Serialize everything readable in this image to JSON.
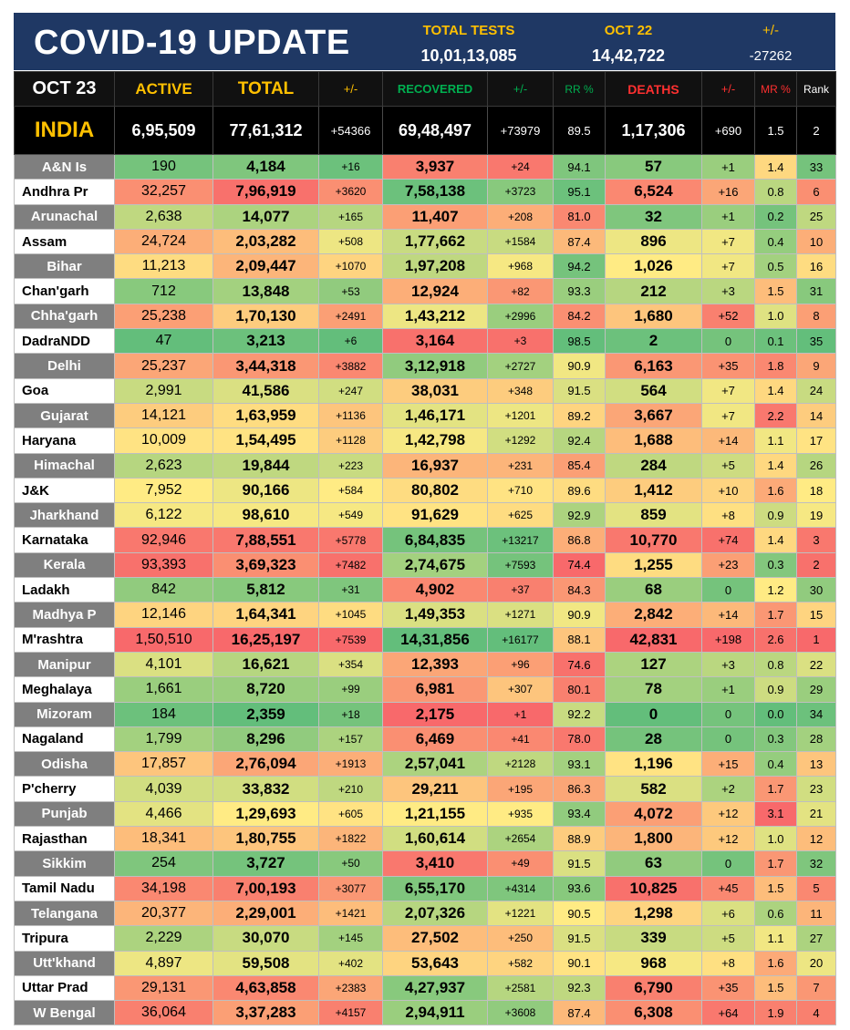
{
  "header": {
    "title": "COVID-19 UPDATE",
    "total_tests_label": "TOTAL TESTS",
    "total_tests_value": "10,01,13,085",
    "prev_date_label": "OCT 22",
    "prev_tests_value": "14,42,722",
    "diff_label": "+/-",
    "diff_value": "-27262"
  },
  "columns": {
    "date": "OCT 23",
    "active": "ACTIVE",
    "total": "TOTAL",
    "total_change": "+/-",
    "recovered": "RECOVERED",
    "recovered_change": "+/-",
    "rr": "RR %",
    "deaths": "DEATHS",
    "deaths_change": "+/-",
    "mr": "MR %",
    "rank": "Rank"
  },
  "colors": {
    "banner_bg": "#1f3864",
    "header_gold": "#ffc000",
    "header_green": "#00b050",
    "header_red": "#ff3030",
    "scale_green": "#63be7b",
    "scale_yellow": "#ffeb84",
    "scale_red": "#f8696b"
  },
  "chart_data": {
    "type": "table",
    "title": "COVID-19 UPDATE",
    "national": {
      "name": "INDIA",
      "active": "6,95,509",
      "total": "77,61,312",
      "total_change": "+54366",
      "recovered": "69,48,497",
      "recovered_change": "+73979",
      "rr": "89.5",
      "deaths": "1,17,306",
      "deaths_change": "+690",
      "mr": "1.5",
      "rank": "2"
    },
    "rows": [
      {
        "name": "A&N Is",
        "active": "190",
        "total": "4,184",
        "total_change": "+16",
        "recovered": "3,937",
        "recovered_change": "+24",
        "rr": "94.1",
        "deaths": "57",
        "deaths_change": "+1",
        "mr": "1.4",
        "rank": "33"
      },
      {
        "name": "Andhra Pr",
        "active": "32,257",
        "total": "7,96,919",
        "total_change": "+3620",
        "recovered": "7,58,138",
        "recovered_change": "+3723",
        "rr": "95.1",
        "deaths": "6,524",
        "deaths_change": "+16",
        "mr": "0.8",
        "rank": "6"
      },
      {
        "name": "Arunachal",
        "active": "2,638",
        "total": "14,077",
        "total_change": "+165",
        "recovered": "11,407",
        "recovered_change": "+208",
        "rr": "81.0",
        "deaths": "32",
        "deaths_change": "+1",
        "mr": "0.2",
        "rank": "25"
      },
      {
        "name": "Assam",
        "active": "24,724",
        "total": "2,03,282",
        "total_change": "+508",
        "recovered": "1,77,662",
        "recovered_change": "+1584",
        "rr": "87.4",
        "deaths": "896",
        "deaths_change": "+7",
        "mr": "0.4",
        "rank": "10"
      },
      {
        "name": "Bihar",
        "active": "11,213",
        "total": "2,09,447",
        "total_change": "+1070",
        "recovered": "1,97,208",
        "recovered_change": "+968",
        "rr": "94.2",
        "deaths": "1,026",
        "deaths_change": "+7",
        "mr": "0.5",
        "rank": "16"
      },
      {
        "name": "Chan'garh",
        "active": "712",
        "total": "13,848",
        "total_change": "+53",
        "recovered": "12,924",
        "recovered_change": "+82",
        "rr": "93.3",
        "deaths": "212",
        "deaths_change": "+3",
        "mr": "1.5",
        "rank": "31"
      },
      {
        "name": "Chha'garh",
        "active": "25,238",
        "total": "1,70,130",
        "total_change": "+2491",
        "recovered": "1,43,212",
        "recovered_change": "+2996",
        "rr": "84.2",
        "deaths": "1,680",
        "deaths_change": "+52",
        "mr": "1.0",
        "rank": "8"
      },
      {
        "name": "DadraNDD",
        "active": "47",
        "total": "3,213",
        "total_change": "+6",
        "recovered": "3,164",
        "recovered_change": "+3",
        "rr": "98.5",
        "deaths": "2",
        "deaths_change": "0",
        "mr": "0.1",
        "rank": "35"
      },
      {
        "name": "Delhi",
        "active": "25,237",
        "total": "3,44,318",
        "total_change": "+3882",
        "recovered": "3,12,918",
        "recovered_change": "+2727",
        "rr": "90.9",
        "deaths": "6,163",
        "deaths_change": "+35",
        "mr": "1.8",
        "rank": "9"
      },
      {
        "name": "Goa",
        "active": "2,991",
        "total": "41,586",
        "total_change": "+247",
        "recovered": "38,031",
        "recovered_change": "+348",
        "rr": "91.5",
        "deaths": "564",
        "deaths_change": "+7",
        "mr": "1.4",
        "rank": "24"
      },
      {
        "name": "Gujarat",
        "active": "14,121",
        "total": "1,63,959",
        "total_change": "+1136",
        "recovered": "1,46,171",
        "recovered_change": "+1201",
        "rr": "89.2",
        "deaths": "3,667",
        "deaths_change": "+7",
        "mr": "2.2",
        "rank": "14"
      },
      {
        "name": "Haryana",
        "active": "10,009",
        "total": "1,54,495",
        "total_change": "+1128",
        "recovered": "1,42,798",
        "recovered_change": "+1292",
        "rr": "92.4",
        "deaths": "1,688",
        "deaths_change": "+14",
        "mr": "1.1",
        "rank": "17"
      },
      {
        "name": "Himachal",
        "active": "2,623",
        "total": "19,844",
        "total_change": "+223",
        "recovered": "16,937",
        "recovered_change": "+231",
        "rr": "85.4",
        "deaths": "284",
        "deaths_change": "+5",
        "mr": "1.4",
        "rank": "26"
      },
      {
        "name": "J&K",
        "active": "7,952",
        "total": "90,166",
        "total_change": "+584",
        "recovered": "80,802",
        "recovered_change": "+710",
        "rr": "89.6",
        "deaths": "1,412",
        "deaths_change": "+10",
        "mr": "1.6",
        "rank": "18"
      },
      {
        "name": "Jharkhand",
        "active": "6,122",
        "total": "98,610",
        "total_change": "+549",
        "recovered": "91,629",
        "recovered_change": "+625",
        "rr": "92.9",
        "deaths": "859",
        "deaths_change": "+8",
        "mr": "0.9",
        "rank": "19"
      },
      {
        "name": "Karnataka",
        "active": "92,946",
        "total": "7,88,551",
        "total_change": "+5778",
        "recovered": "6,84,835",
        "recovered_change": "+13217",
        "rr": "86.8",
        "deaths": "10,770",
        "deaths_change": "+74",
        "mr": "1.4",
        "rank": "3"
      },
      {
        "name": "Kerala",
        "active": "93,393",
        "total": "3,69,323",
        "total_change": "+7482",
        "recovered": "2,74,675",
        "recovered_change": "+7593",
        "rr": "74.4",
        "deaths": "1,255",
        "deaths_change": "+23",
        "mr": "0.3",
        "rank": "2"
      },
      {
        "name": "Ladakh",
        "active": "842",
        "total": "5,812",
        "total_change": "+31",
        "recovered": "4,902",
        "recovered_change": "+37",
        "rr": "84.3",
        "deaths": "68",
        "deaths_change": "0",
        "mr": "1.2",
        "rank": "30"
      },
      {
        "name": "Madhya P",
        "active": "12,146",
        "total": "1,64,341",
        "total_change": "+1045",
        "recovered": "1,49,353",
        "recovered_change": "+1271",
        "rr": "90.9",
        "deaths": "2,842",
        "deaths_change": "+14",
        "mr": "1.7",
        "rank": "15"
      },
      {
        "name": "M'rashtra",
        "active": "1,50,510",
        "total": "16,25,197",
        "total_change": "+7539",
        "recovered": "14,31,856",
        "recovered_change": "+16177",
        "rr": "88.1",
        "deaths": "42,831",
        "deaths_change": "+198",
        "mr": "2.6",
        "rank": "1"
      },
      {
        "name": "Manipur",
        "active": "4,101",
        "total": "16,621",
        "total_change": "+354",
        "recovered": "12,393",
        "recovered_change": "+96",
        "rr": "74.6",
        "deaths": "127",
        "deaths_change": "+3",
        "mr": "0.8",
        "rank": "22"
      },
      {
        "name": "Meghalaya",
        "active": "1,661",
        "total": "8,720",
        "total_change": "+99",
        "recovered": "6,981",
        "recovered_change": "+307",
        "rr": "80.1",
        "deaths": "78",
        "deaths_change": "+1",
        "mr": "0.9",
        "rank": "29"
      },
      {
        "name": "Mizoram",
        "active": "184",
        "total": "2,359",
        "total_change": "+18",
        "recovered": "2,175",
        "recovered_change": "+1",
        "rr": "92.2",
        "deaths": "0",
        "deaths_change": "0",
        "mr": "0.0",
        "rank": "34"
      },
      {
        "name": "Nagaland",
        "active": "1,799",
        "total": "8,296",
        "total_change": "+157",
        "recovered": "6,469",
        "recovered_change": "+41",
        "rr": "78.0",
        "deaths": "28",
        "deaths_change": "0",
        "mr": "0.3",
        "rank": "28"
      },
      {
        "name": "Odisha",
        "active": "17,857",
        "total": "2,76,094",
        "total_change": "+1913",
        "recovered": "2,57,041",
        "recovered_change": "+2128",
        "rr": "93.1",
        "deaths": "1,196",
        "deaths_change": "+15",
        "mr": "0.4",
        "rank": "13"
      },
      {
        "name": "P'cherry",
        "active": "4,039",
        "total": "33,832",
        "total_change": "+210",
        "recovered": "29,211",
        "recovered_change": "+195",
        "rr": "86.3",
        "deaths": "582",
        "deaths_change": "+2",
        "mr": "1.7",
        "rank": "23"
      },
      {
        "name": "Punjab",
        "active": "4,466",
        "total": "1,29,693",
        "total_change": "+605",
        "recovered": "1,21,155",
        "recovered_change": "+935",
        "rr": "93.4",
        "deaths": "4,072",
        "deaths_change": "+12",
        "mr": "3.1",
        "rank": "21"
      },
      {
        "name": "Rajasthan",
        "active": "18,341",
        "total": "1,80,755",
        "total_change": "+1822",
        "recovered": "1,60,614",
        "recovered_change": "+2654",
        "rr": "88.9",
        "deaths": "1,800",
        "deaths_change": "+12",
        "mr": "1.0",
        "rank": "12"
      },
      {
        "name": "Sikkim",
        "active": "254",
        "total": "3,727",
        "total_change": "+50",
        "recovered": "3,410",
        "recovered_change": "+49",
        "rr": "91.5",
        "deaths": "63",
        "deaths_change": "0",
        "mr": "1.7",
        "rank": "32"
      },
      {
        "name": "Tamil Nadu",
        "active": "34,198",
        "total": "7,00,193",
        "total_change": "+3077",
        "recovered": "6,55,170",
        "recovered_change": "+4314",
        "rr": "93.6",
        "deaths": "10,825",
        "deaths_change": "+45",
        "mr": "1.5",
        "rank": "5"
      },
      {
        "name": "Telangana",
        "active": "20,377",
        "total": "2,29,001",
        "total_change": "+1421",
        "recovered": "2,07,326",
        "recovered_change": "+1221",
        "rr": "90.5",
        "deaths": "1,298",
        "deaths_change": "+6",
        "mr": "0.6",
        "rank": "11"
      },
      {
        "name": "Tripura",
        "active": "2,229",
        "total": "30,070",
        "total_change": "+145",
        "recovered": "27,502",
        "recovered_change": "+250",
        "rr": "91.5",
        "deaths": "339",
        "deaths_change": "+5",
        "mr": "1.1",
        "rank": "27"
      },
      {
        "name": "Utt'khand",
        "active": "4,897",
        "total": "59,508",
        "total_change": "+402",
        "recovered": "53,643",
        "recovered_change": "+582",
        "rr": "90.1",
        "deaths": "968",
        "deaths_change": "+8",
        "mr": "1.6",
        "rank": "20"
      },
      {
        "name": "Uttar Prad",
        "active": "29,131",
        "total": "4,63,858",
        "total_change": "+2383",
        "recovered": "4,27,937",
        "recovered_change": "+2581",
        "rr": "92.3",
        "deaths": "6,790",
        "deaths_change": "+35",
        "mr": "1.5",
        "rank": "7"
      },
      {
        "name": "W Bengal",
        "active": "36,064",
        "total": "3,37,283",
        "total_change": "+4157",
        "recovered": "2,94,911",
        "recovered_change": "+3608",
        "rr": "87.4",
        "deaths": "6,308",
        "deaths_change": "+64",
        "mr": "1.9",
        "rank": "4"
      }
    ]
  }
}
